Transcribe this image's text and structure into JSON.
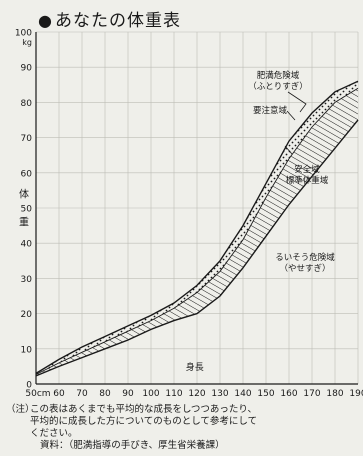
{
  "title": "あなたの体重表",
  "title_bullet": "●",
  "chart_data": {
    "type": "area",
    "xlabel": "身長",
    "ylabel_chars": [
      "体",
      "重"
    ],
    "y_unit": "kg",
    "x_unit": "cm",
    "xlim": [
      50,
      190
    ],
    "ylim": [
      0,
      100
    ],
    "x_ticks": [
      50,
      60,
      70,
      80,
      90,
      100,
      110,
      120,
      130,
      140,
      150,
      160,
      170,
      180,
      190
    ],
    "x_tick_labels": [
      "50cm",
      "60",
      "70",
      "80",
      "90",
      "100",
      "110",
      "120",
      "130",
      "140",
      "150",
      "160",
      "170",
      "180",
      "190"
    ],
    "y_ticks": [
      0,
      10,
      20,
      30,
      40,
      50,
      60,
      70,
      80,
      90,
      100
    ],
    "y_tick_labels": [
      "0",
      "10",
      "20",
      "30",
      "40",
      "50",
      "60",
      "70",
      "80",
      "90",
      "100"
    ],
    "grid": true,
    "x": [
      50,
      60,
      70,
      80,
      90,
      100,
      110,
      120,
      130,
      140,
      150,
      160,
      170,
      180,
      190
    ],
    "series": [
      {
        "name": "肥満危険域",
        "values": [
          3,
          7,
          10.5,
          13.5,
          16.5,
          19.5,
          23,
          28,
          35,
          45,
          57,
          69,
          77,
          83,
          86
        ]
      },
      {
        "name": "要注意域",
        "values": [
          2.7,
          6,
          9,
          12,
          15,
          18,
          21.5,
          26,
          32,
          41,
          53,
          64,
          73,
          80,
          84
        ]
      },
      {
        "name": "安全域 標準体重域",
        "values": [
          2.3,
          5,
          7.5,
          10,
          12.5,
          15.5,
          18,
          20,
          25,
          33,
          42,
          51,
          59,
          67,
          75
        ]
      }
    ],
    "zone_labels": [
      {
        "text": "肥満危険域",
        "sub": "（ふとりすぎ）"
      },
      {
        "text": "要注意域"
      },
      {
        "text": "安全域",
        "sub": "標準体重域"
      },
      {
        "text": "るいそう危険域",
        "sub": "（やせすぎ）"
      }
    ]
  },
  "notes": {
    "mark": "（注）",
    "body": "この表はあくまでも平均的な成長をしつつあったり、\n平均的に成長した方についてのものとして参考にして\nください。",
    "source": "資料：（肥満指導の手びき、厚生省栄養課）"
  },
  "colors": {
    "ink": "#1a1a1a",
    "paper": "#efefea",
    "grid": "#bdbdb5"
  }
}
